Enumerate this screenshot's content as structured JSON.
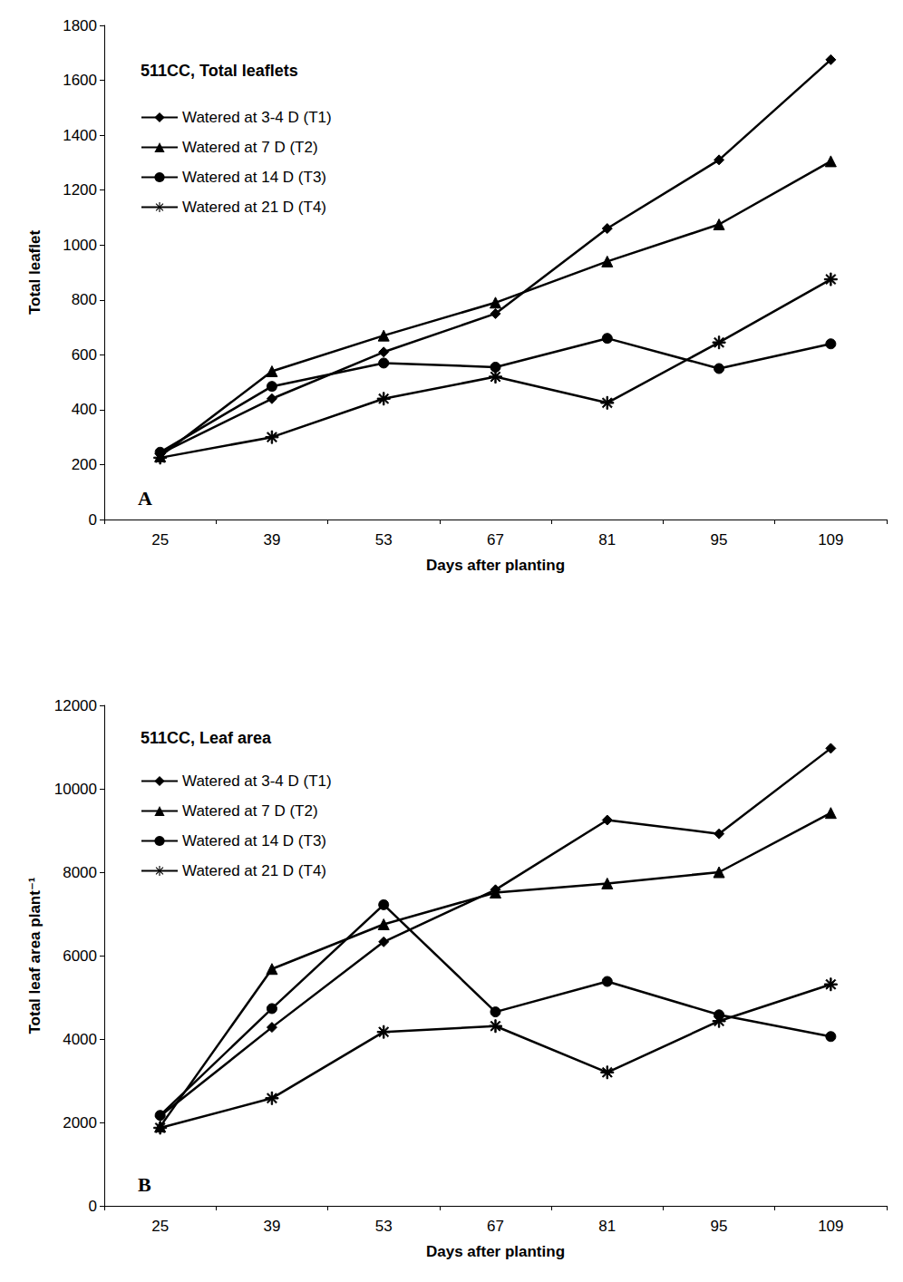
{
  "chart_data": [
    {
      "type": "line",
      "title": "511CC, Total leaflets",
      "panel_label": "A",
      "xlabel": "Days after planting",
      "ylabel": "Total leaflet",
      "categories": [
        "25",
        "39",
        "53",
        "67",
        "81",
        "95",
        "109"
      ],
      "ylim": [
        0,
        1800
      ],
      "yticks": [
        0,
        200,
        400,
        600,
        800,
        1000,
        1200,
        1400,
        1600,
        1800
      ],
      "grid": false,
      "legend": "top-left",
      "series": [
        {
          "name": "Watered at 3-4 D (T1)",
          "color": "#000000",
          "marker": "diamond",
          "line_style": "solid",
          "values": [
            240,
            440,
            610,
            750,
            1060,
            1310,
            1675
          ]
        },
        {
          "name": "Watered at 7 D (T2)",
          "color": "#000000",
          "marker": "triangle",
          "line_style": "solid",
          "values": [
            230,
            540,
            670,
            790,
            940,
            1075,
            1305
          ]
        },
        {
          "name": "Watered at 14 D (T3)",
          "color": "#000000",
          "marker": "circle",
          "line_style": "solid",
          "values": [
            245,
            485,
            570,
            555,
            660,
            550,
            640
          ]
        },
        {
          "name": "Watered at 21 D (T4)",
          "color": "#000000",
          "marker": "star",
          "line_style": "solid",
          "values": [
            225,
            300,
            440,
            520,
            425,
            645,
            875
          ]
        }
      ]
    },
    {
      "type": "line",
      "title": "511CC, Leaf area",
      "panel_label": "B",
      "xlabel": "Days after planting",
      "ylabel": "Total leaf area plant⁻¹",
      "categories": [
        "25",
        "39",
        "53",
        "67",
        "81",
        "95",
        "109"
      ],
      "ylim": [
        0,
        12000
      ],
      "yticks": [
        0,
        2000,
        4000,
        6000,
        8000,
        10000,
        12000
      ],
      "grid": false,
      "legend": "top-left",
      "series": [
        {
          "name": "Watered at 3-4 D (T1)",
          "color": "#000000",
          "marker": "diamond",
          "line_style": "solid",
          "values": [
            2150,
            4280,
            6330,
            7580,
            9250,
            8920,
            10970
          ]
        },
        {
          "name": "Watered at 7 D (T2)",
          "color": "#000000",
          "marker": "triangle",
          "line_style": "solid",
          "values": [
            1900,
            5680,
            6750,
            7510,
            7730,
            8000,
            9420
          ]
        },
        {
          "name": "Watered at 14 D (T3)",
          "color": "#000000",
          "marker": "circle",
          "line_style": "solid",
          "values": [
            2170,
            4730,
            7220,
            4650,
            5380,
            4580,
            4060
          ]
        },
        {
          "name": "Watered at 21 D (T4)",
          "color": "#000000",
          "marker": "star",
          "line_style": "solid",
          "values": [
            1870,
            2580,
            4170,
            4310,
            3200,
            4430,
            5310
          ]
        }
      ]
    }
  ]
}
